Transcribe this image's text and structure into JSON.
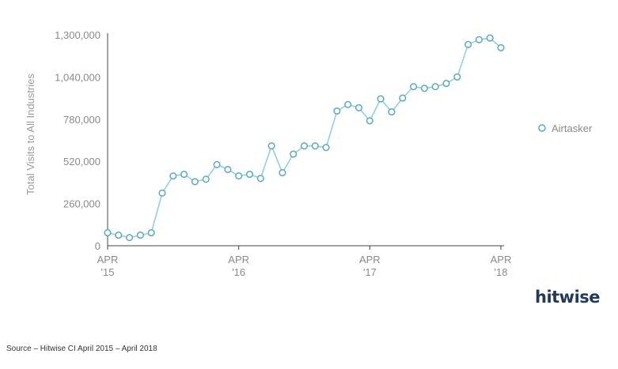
{
  "chart_data": {
    "type": "line",
    "ylabel": "Total Visits to All Industries",
    "ylim": [
      0,
      1300000
    ],
    "yticks": [
      "0",
      "260,000",
      "520,000",
      "780,000",
      "1,040,000",
      "1,300,000"
    ],
    "ytick_values": [
      0,
      260000,
      520000,
      780000,
      1040000,
      1300000
    ],
    "xticks": [
      {
        "line1": "APR",
        "line2": "'15",
        "index": 0
      },
      {
        "line1": "APR",
        "line2": "'16",
        "index": 12
      },
      {
        "line1": "APR",
        "line2": "'17",
        "index": 24
      },
      {
        "line1": "APR",
        "line2": "'18",
        "index": 36
      }
    ],
    "x": [
      "2015-04",
      "2015-05",
      "2015-06",
      "2015-07",
      "2015-08",
      "2015-09",
      "2015-10",
      "2015-11",
      "2015-12",
      "2016-01",
      "2016-02",
      "2016-03",
      "2016-04",
      "2016-05",
      "2016-06",
      "2016-07",
      "2016-08",
      "2016-09",
      "2016-10",
      "2016-11",
      "2016-12",
      "2017-01",
      "2017-02",
      "2017-03",
      "2017-04",
      "2017-05",
      "2017-06",
      "2017-07",
      "2017-08",
      "2017-09",
      "2017-10",
      "2017-11",
      "2017-12",
      "2018-01",
      "2018-02",
      "2018-03",
      "2018-04"
    ],
    "series": [
      {
        "name": "Airtasker",
        "values": [
          80000,
          65000,
          50000,
          65000,
          80000,
          325000,
          430000,
          440000,
          395000,
          410000,
          500000,
          470000,
          430000,
          440000,
          415000,
          615000,
          450000,
          565000,
          615000,
          615000,
          605000,
          830000,
          870000,
          850000,
          770000,
          905000,
          825000,
          910000,
          980000,
          970000,
          980000,
          1000000,
          1040000,
          1240000,
          1270000,
          1280000,
          1220000
        ]
      }
    ],
    "grid": false,
    "legend": "right",
    "colors": {
      "line": "#8fd0e6",
      "marker_edge": "#5aa9c4",
      "axis": "#444444"
    }
  },
  "branding": {
    "logo_text": "hitwise"
  },
  "footer": {
    "source": "Source – Hitwise CI April 2015 – April 2018"
  }
}
